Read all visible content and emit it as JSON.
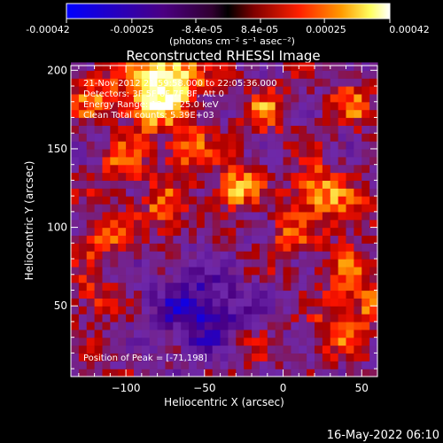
{
  "colorbar": {
    "tick_labels": [
      "-0.00042",
      "-0.00025",
      "-8.4e-05",
      "8.4e-05",
      "0.00025",
      "0.00042"
    ],
    "tick_values": [
      -0.00042,
      -0.00025,
      -8.4e-05,
      8.4e-05,
      0.00025,
      0.00042
    ],
    "range": [
      -0.00042,
      0.00042
    ],
    "units_label": "(photons cm⁻² s⁻¹ asec⁻²)"
  },
  "annotations": {
    "time_range": "21-Nov-2012 21:59:58.000 to 22:05:36.000",
    "detectors": "Detectors: 3F 5F 6F 7F 8F, Att 0",
    "energy": "Energy Range: 12.0 - 25.0 keV",
    "method": "Clean     Total counts: 5.39E+03",
    "peak": "Position of Peak = [-71,198]"
  },
  "footer_timestamp": "16-May-2022 06:10",
  "chart_data": {
    "type": "heatmap",
    "title": "Reconstructed RHESSI Image",
    "xlabel": "Heliocentric X (arcsec)",
    "ylabel": "Heliocentric Y (arcsec)",
    "xlim": [
      -135,
      60
    ],
    "ylim": [
      5,
      203
    ],
    "x_ticks": [
      -100,
      -50,
      0,
      50
    ],
    "x_tick_labels": [
      "−100",
      "−50",
      "0",
      "50"
    ],
    "y_ticks": [
      50,
      100,
      150,
      200
    ],
    "y_tick_labels": [
      "50",
      "100",
      "150",
      "200"
    ],
    "colormap": [
      "#0000ff",
      "#4b0082",
      "#7a2fb0",
      "#ff0000",
      "#ff8c00",
      "#ffff66",
      "#ffffff"
    ],
    "peak": {
      "x": -71,
      "y": 198
    },
    "blobs": [
      {
        "x": -71,
        "y": 198,
        "amp": 1.0,
        "w": 14
      },
      {
        "x": -85,
        "y": 178,
        "amp": 0.7,
        "w": 12
      },
      {
        "x": -120,
        "y": 185,
        "amp": 0.45,
        "w": 12
      },
      {
        "x": -100,
        "y": 140,
        "amp": 0.55,
        "w": 10
      },
      {
        "x": -60,
        "y": 150,
        "amp": 0.6,
        "w": 10
      },
      {
        "x": -30,
        "y": 125,
        "amp": 0.8,
        "w": 9
      },
      {
        "x": 20,
        "y": 125,
        "amp": 0.75,
        "w": 10
      },
      {
        "x": 40,
        "y": 110,
        "amp": 0.55,
        "w": 10
      },
      {
        "x": -75,
        "y": 110,
        "amp": 0.6,
        "w": 10
      },
      {
        "x": -115,
        "y": 95,
        "amp": 0.5,
        "w": 11
      },
      {
        "x": 5,
        "y": 95,
        "amp": 0.45,
        "w": 10
      },
      {
        "x": 40,
        "y": 70,
        "amp": 0.45,
        "w": 12
      },
      {
        "x": 35,
        "y": 35,
        "amp": 0.55,
        "w": 10
      },
      {
        "x": 55,
        "y": 50,
        "amp": 0.5,
        "w": 8
      },
      {
        "x": -10,
        "y": 175,
        "amp": 0.5,
        "w": 10
      },
      {
        "x": 45,
        "y": 180,
        "amp": 0.45,
        "w": 10
      },
      {
        "x": -120,
        "y": 55,
        "amp": 0.35,
        "w": 10
      },
      {
        "x": -25,
        "y": 25,
        "amp": 0.35,
        "w": 10
      },
      {
        "x": -60,
        "y": 50,
        "amp": -0.45,
        "w": 20
      },
      {
        "x": -40,
        "y": 40,
        "amp": -0.4,
        "w": 18
      }
    ]
  }
}
